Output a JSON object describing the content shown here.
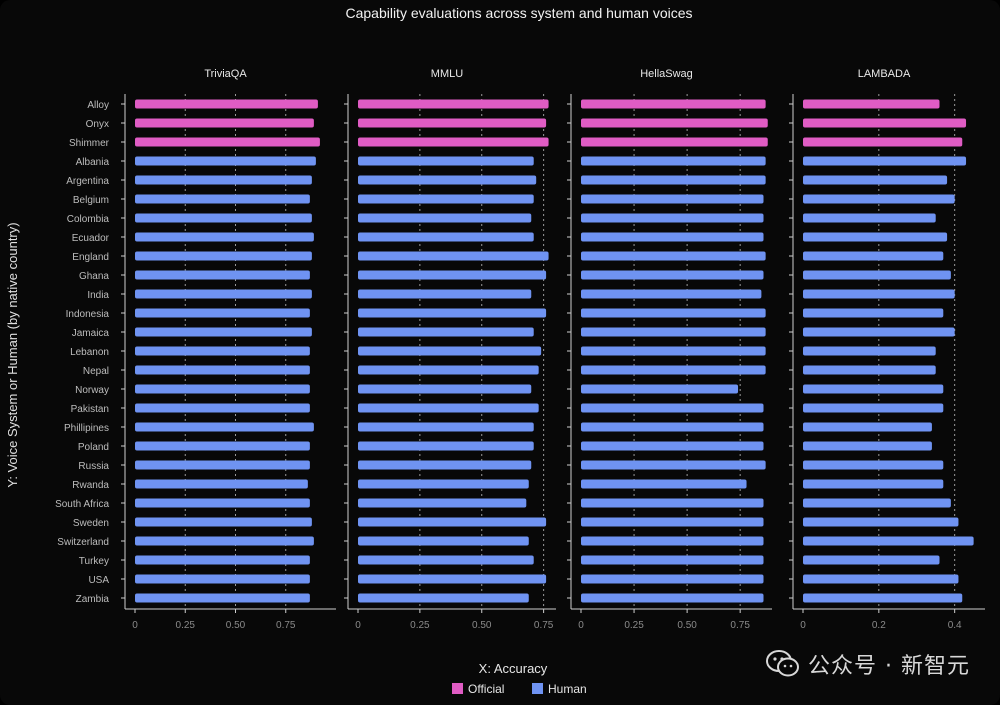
{
  "title": "Capability evaluations across system and human voices",
  "xlabel": "X: Accuracy",
  "ylabel": "Y:  Voice System or Human (by native country)",
  "watermark": "公众号 · 新智元",
  "colors": {
    "Official": "#e05cc4",
    "Human": "#6f93f2",
    "grid": "#9a9a9a",
    "axis": "#cfcfcf",
    "tick_text": "#8a8a8a",
    "label_text": "#bdbdbd"
  },
  "chart_data": [
    {
      "type": "bar",
      "orientation": "horizontal",
      "title": "TriviaQA",
      "xlim": [
        0,
        1.0
      ],
      "xticks": [
        0,
        0.25,
        0.5,
        0.75
      ],
      "xtick_labels": [
        "0",
        "0.25",
        "0.50",
        "0.75"
      ],
      "grid": true,
      "categories": [
        "Alloy",
        "Onyx",
        "Shimmer",
        "Albania",
        "Argentina",
        "Belgium",
        "Colombia",
        "Ecuador",
        "England",
        "Ghana",
        "India",
        "Indonesia",
        "Jamaica",
        "Lebanon",
        "Nepal",
        "Norway",
        "Pakistan",
        "Phillipines",
        "Poland",
        "Russia",
        "Rwanda",
        "South Africa",
        "Sweden",
        "Switzerland",
        "Turkey",
        "USA",
        "Zambia"
      ],
      "groups": [
        "Official",
        "Official",
        "Official",
        "Human",
        "Human",
        "Human",
        "Human",
        "Human",
        "Human",
        "Human",
        "Human",
        "Human",
        "Human",
        "Human",
        "Human",
        "Human",
        "Human",
        "Human",
        "Human",
        "Human",
        "Human",
        "Human",
        "Human",
        "Human",
        "Human",
        "Human",
        "Human"
      ],
      "values": [
        0.91,
        0.89,
        0.92,
        0.9,
        0.88,
        0.87,
        0.88,
        0.89,
        0.88,
        0.87,
        0.88,
        0.87,
        0.88,
        0.87,
        0.87,
        0.87,
        0.87,
        0.89,
        0.87,
        0.87,
        0.86,
        0.87,
        0.88,
        0.89,
        0.87,
        0.87,
        0.87
      ]
    },
    {
      "type": "bar",
      "orientation": "horizontal",
      "title": "MMLU",
      "xlim": [
        0,
        0.8
      ],
      "xticks": [
        0,
        0.25,
        0.5,
        0.75
      ],
      "xtick_labels": [
        "0",
        "0.25",
        "0.50",
        "0.75"
      ],
      "grid": true,
      "categories": [
        "Alloy",
        "Onyx",
        "Shimmer",
        "Albania",
        "Argentina",
        "Belgium",
        "Colombia",
        "Ecuador",
        "England",
        "Ghana",
        "India",
        "Indonesia",
        "Jamaica",
        "Lebanon",
        "Nepal",
        "Norway",
        "Pakistan",
        "Phillipines",
        "Poland",
        "Russia",
        "Rwanda",
        "South Africa",
        "Sweden",
        "Switzerland",
        "Turkey",
        "USA",
        "Zambia"
      ],
      "groups": [
        "Official",
        "Official",
        "Official",
        "Human",
        "Human",
        "Human",
        "Human",
        "Human",
        "Human",
        "Human",
        "Human",
        "Human",
        "Human",
        "Human",
        "Human",
        "Human",
        "Human",
        "Human",
        "Human",
        "Human",
        "Human",
        "Human",
        "Human",
        "Human",
        "Human",
        "Human",
        "Human"
      ],
      "values": [
        0.77,
        0.76,
        0.77,
        0.71,
        0.72,
        0.71,
        0.7,
        0.71,
        0.77,
        0.76,
        0.7,
        0.76,
        0.71,
        0.74,
        0.73,
        0.7,
        0.73,
        0.71,
        0.71,
        0.7,
        0.69,
        0.68,
        0.76,
        0.69,
        0.71,
        0.76,
        0.69
      ]
    },
    {
      "type": "bar",
      "orientation": "horizontal",
      "title": "HellaSwag",
      "xlim": [
        0,
        0.9
      ],
      "xticks": [
        0,
        0.25,
        0.5,
        0.75
      ],
      "xtick_labels": [
        "0",
        "0.25",
        "0.50",
        "0.75"
      ],
      "grid": true,
      "categories": [
        "Alloy",
        "Onyx",
        "Shimmer",
        "Albania",
        "Argentina",
        "Belgium",
        "Colombia",
        "Ecuador",
        "England",
        "Ghana",
        "India",
        "Indonesia",
        "Jamaica",
        "Lebanon",
        "Nepal",
        "Norway",
        "Pakistan",
        "Phillipines",
        "Poland",
        "Russia",
        "Rwanda",
        "South Africa",
        "Sweden",
        "Switzerland",
        "Turkey",
        "USA",
        "Zambia"
      ],
      "groups": [
        "Official",
        "Official",
        "Official",
        "Human",
        "Human",
        "Human",
        "Human",
        "Human",
        "Human",
        "Human",
        "Human",
        "Human",
        "Human",
        "Human",
        "Human",
        "Human",
        "Human",
        "Human",
        "Human",
        "Human",
        "Human",
        "Human",
        "Human",
        "Human",
        "Human",
        "Human",
        "Human"
      ],
      "values": [
        0.87,
        0.88,
        0.88,
        0.87,
        0.87,
        0.86,
        0.86,
        0.86,
        0.87,
        0.86,
        0.85,
        0.87,
        0.87,
        0.87,
        0.87,
        0.74,
        0.86,
        0.86,
        0.86,
        0.87,
        0.78,
        0.86,
        0.86,
        0.86,
        0.86,
        0.86,
        0.86
      ]
    },
    {
      "type": "bar",
      "orientation": "horizontal",
      "title": "LAMBADA",
      "xlim": [
        0,
        0.48
      ],
      "xticks": [
        0,
        0.2,
        0.4
      ],
      "xtick_labels": [
        "0",
        "0.2",
        "0.4"
      ],
      "grid": true,
      "categories": [
        "Alloy",
        "Onyx",
        "Shimmer",
        "Albania",
        "Argentina",
        "Belgium",
        "Colombia",
        "Ecuador",
        "England",
        "Ghana",
        "India",
        "Indonesia",
        "Jamaica",
        "Lebanon",
        "Nepal",
        "Norway",
        "Pakistan",
        "Phillipines",
        "Poland",
        "Russia",
        "Rwanda",
        "South Africa",
        "Sweden",
        "Switzerland",
        "Turkey",
        "USA",
        "Zambia"
      ],
      "groups": [
        "Official",
        "Official",
        "Official",
        "Human",
        "Human",
        "Human",
        "Human",
        "Human",
        "Human",
        "Human",
        "Human",
        "Human",
        "Human",
        "Human",
        "Human",
        "Human",
        "Human",
        "Human",
        "Human",
        "Human",
        "Human",
        "Human",
        "Human",
        "Human",
        "Human",
        "Human",
        "Human"
      ],
      "values": [
        0.36,
        0.43,
        0.42,
        0.43,
        0.38,
        0.4,
        0.35,
        0.38,
        0.37,
        0.39,
        0.4,
        0.37,
        0.4,
        0.35,
        0.35,
        0.37,
        0.37,
        0.34,
        0.34,
        0.37,
        0.37,
        0.39,
        0.41,
        0.45,
        0.36,
        0.41,
        0.42
      ]
    }
  ],
  "legend": {
    "placement": "bottom-center",
    "entries": [
      {
        "label": "Official",
        "group": "Official"
      },
      {
        "label": "Human",
        "group": "Human"
      }
    ]
  }
}
